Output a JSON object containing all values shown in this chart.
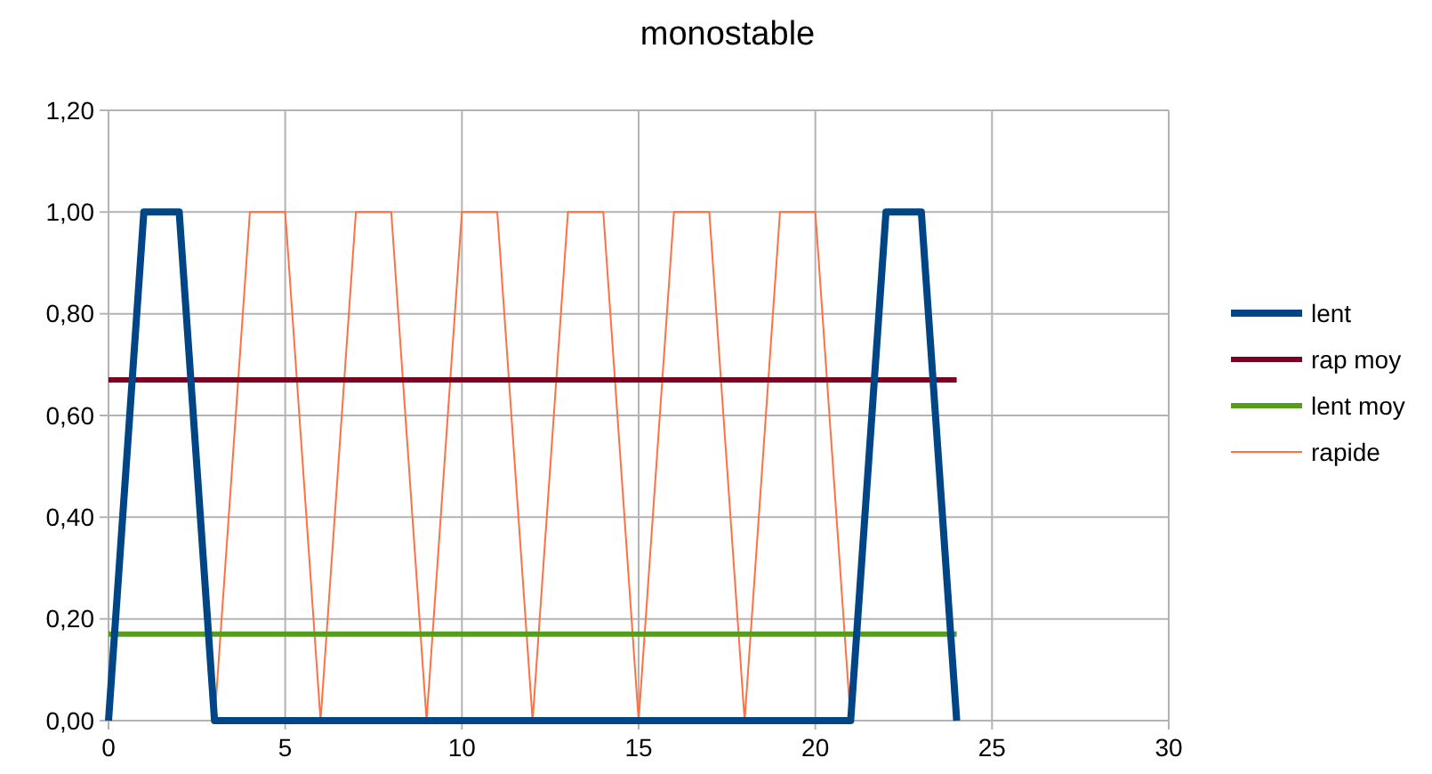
{
  "chart_data": {
    "type": "line",
    "title": "monostable",
    "xlim": [
      0,
      30
    ],
    "xticks": [
      0,
      5,
      10,
      15,
      20,
      25,
      30
    ],
    "ylim": [
      0,
      1.2
    ],
    "yticks": [
      {
        "value": 0,
        "label": "0,00"
      },
      {
        "value": 0.2,
        "label": "0,20"
      },
      {
        "value": 0.4,
        "label": "0,40"
      },
      {
        "value": 0.6,
        "label": "0,60"
      },
      {
        "value": 0.8,
        "label": "0,80"
      },
      {
        "value": 1,
        "label": "1,00"
      },
      {
        "value": 1.2,
        "label": "1,20"
      }
    ],
    "grid": true,
    "legend": "right",
    "marker": "none",
    "line_style": "solid",
    "series": [
      {
        "name": "lent",
        "color": "#004586",
        "x": [
          0,
          1,
          2,
          3,
          21,
          22,
          23,
          24
        ],
        "values": [
          0,
          1,
          1,
          0,
          0,
          1,
          1,
          0
        ]
      },
      {
        "name": "rap moy",
        "color": "#7e0021",
        "x": [
          0,
          24
        ],
        "values": [
          0.67,
          0.67
        ]
      },
      {
        "name": "lent moy",
        "color": "#579d1c",
        "x": [
          0,
          24
        ],
        "values": [
          0.17,
          0.17
        ]
      },
      {
        "name": "rapide",
        "color": "#ff7043",
        "x": [
          3,
          4,
          5,
          6,
          7,
          8,
          9,
          10,
          11,
          12,
          13,
          14,
          15,
          16,
          17,
          18,
          19,
          20,
          21
        ],
        "values": [
          0,
          1,
          1,
          0,
          1,
          1,
          0,
          1,
          1,
          0,
          1,
          1,
          0,
          1,
          1,
          0,
          1,
          1,
          0
        ]
      }
    ]
  }
}
